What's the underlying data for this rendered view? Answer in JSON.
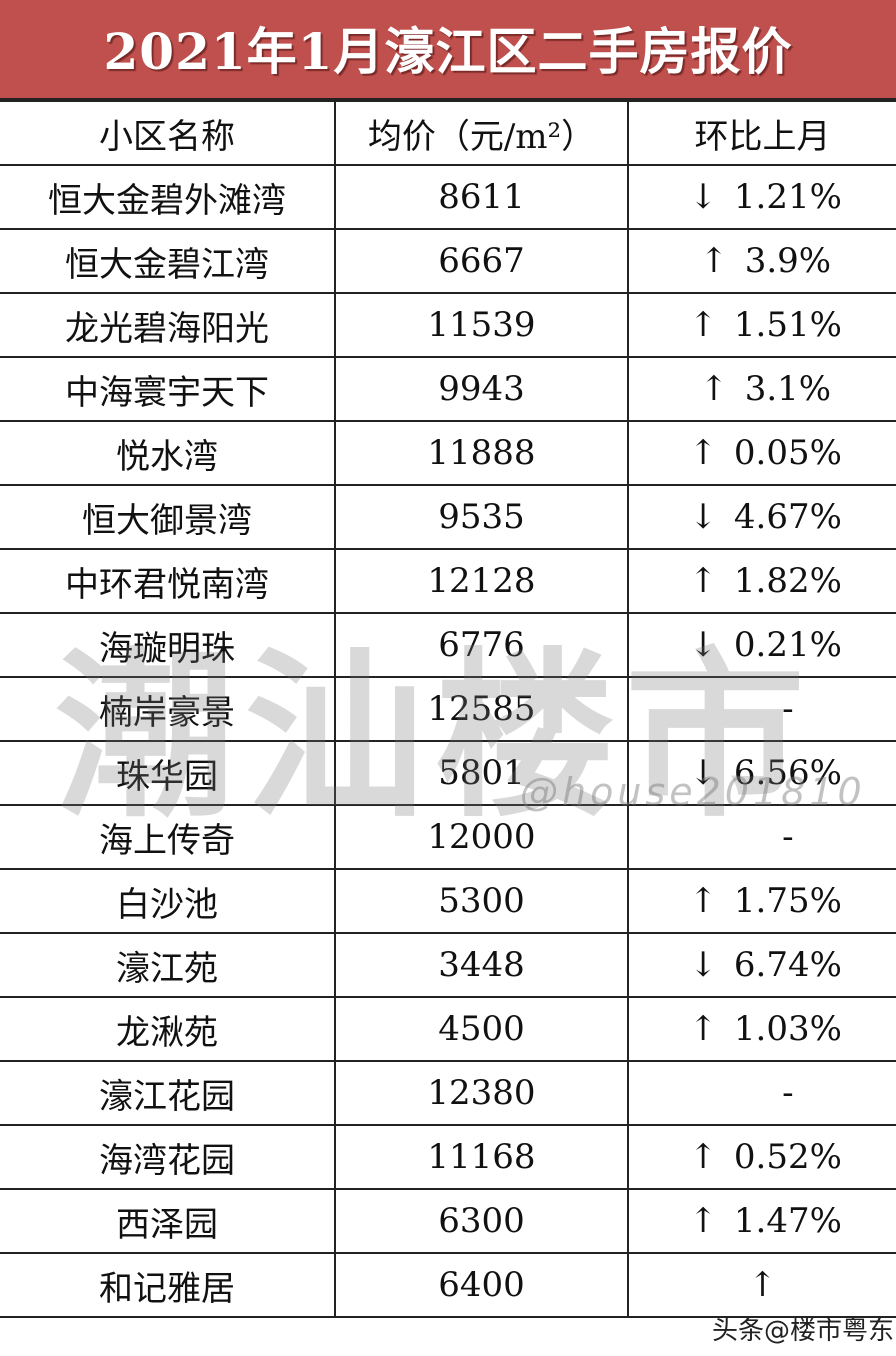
{
  "title": "2021年1月濠江区二手房报价",
  "headers": [
    "小区名称",
    "均价（元/m²）",
    "环比上月"
  ],
  "rows": [
    {
      "name": "恒大金碧外滩湾",
      "price": "8611",
      "arrow": "↓",
      "change": "1.21%"
    },
    {
      "name": "恒大金碧江湾",
      "price": "6667",
      "arrow": "↑",
      "change": "3.9%"
    },
    {
      "name": "龙光碧海阳光",
      "price": "11539",
      "arrow": "↑",
      "change": "1.51%"
    },
    {
      "name": "中海寰宇天下",
      "price": "9943",
      "arrow": "↑",
      "change": "3.1%"
    },
    {
      "name": "悦水湾",
      "price": "11888",
      "arrow": "↑",
      "change": "0.05%"
    },
    {
      "name": "恒大御景湾",
      "price": "9535",
      "arrow": "↓",
      "change": "4.67%"
    },
    {
      "name": "中环君悦南湾",
      "price": "12128",
      "arrow": "↑",
      "change": "1.82%"
    },
    {
      "name": "海璇明珠",
      "price": "6776",
      "arrow": "↓",
      "change": "0.21%"
    },
    {
      "name": "楠岸豪景",
      "price": "12585",
      "arrow": "",
      "change": "-"
    },
    {
      "name": "珠华园",
      "price": "5801",
      "arrow": "↓",
      "change": "6.56%"
    },
    {
      "name": "海上传奇",
      "price": "12000",
      "arrow": "",
      "change": "-"
    },
    {
      "name": "白沙池",
      "price": "5300",
      "arrow": "↑",
      "change": "1.75%"
    },
    {
      "name": "濠江苑",
      "price": "3448",
      "arrow": "↓",
      "change": "6.74%"
    },
    {
      "name": "龙湫苑",
      "price": "4500",
      "arrow": "↑",
      "change": "1.03%"
    },
    {
      "name": "濠江花园",
      "price": "12380",
      "arrow": "",
      "change": "-"
    },
    {
      "name": "海湾花园",
      "price": "11168",
      "arrow": "↑",
      "change": "0.52%"
    },
    {
      "name": "西泽园",
      "price": "6300",
      "arrow": "↑",
      "change": "1.47%"
    },
    {
      "name": "和记雅居",
      "price": "6400",
      "arrow": "↑",
      "change": ""
    }
  ],
  "watermark": {
    "main": "潮汕楼市",
    "handle": "@house201810",
    "source": "头条@楼市粤东"
  },
  "colors": {
    "title_bg": "#c0504d",
    "title_text": "#ffffff"
  }
}
